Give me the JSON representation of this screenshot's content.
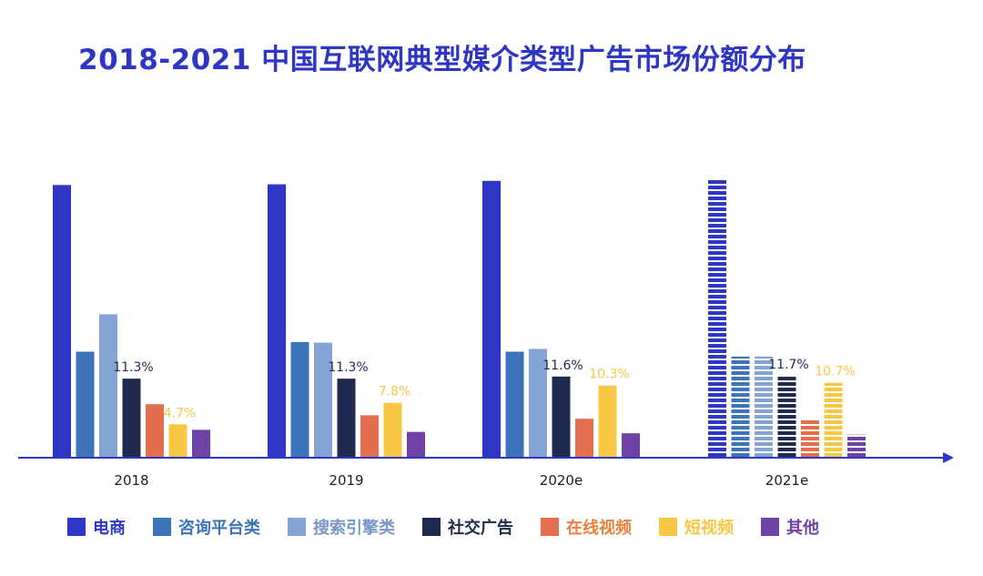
{
  "title": "2018-2021 中国互联网典型媒介类型广告市场份额分布",
  "chart_data": {
    "type": "bar",
    "categories": [
      "2018",
      "2019",
      "2020e",
      "2021e"
    ],
    "ylim": [
      0,
      40
    ],
    "grid": false,
    "legend_position": "bottom",
    "forecast_style": "striped",
    "series": [
      {
        "name": "电商",
        "color": "#2f36c4",
        "label_color": "#2f36c4",
        "values": [
          39.3,
          39.4,
          39.9,
          40.1
        ],
        "labels": [
          "",
          "",
          "",
          ""
        ]
      },
      {
        "name": "咨询平台类",
        "color": "#3d73b8",
        "label_color": "#3d73b8",
        "values": [
          15.2,
          16.6,
          15.2,
          14.5
        ],
        "labels": [
          "",
          "",
          "",
          ""
        ]
      },
      {
        "name": "搜索引擎类",
        "color": "#84a4d6",
        "label_color": "#7896c8",
        "values": [
          20.6,
          16.5,
          15.6,
          14.5
        ],
        "labels": [
          "",
          "",
          "",
          ""
        ]
      },
      {
        "name": "社交广告",
        "color": "#202a4f",
        "label_color": "#202a4f",
        "values": [
          11.3,
          11.3,
          11.6,
          11.7
        ],
        "labels": [
          "11.3%",
          "11.3%",
          "11.6%",
          "11.7%"
        ]
      },
      {
        "name": "在线视频",
        "color": "#e36d4f",
        "label_color": "#e8813e",
        "values": [
          7.6,
          6.0,
          5.5,
          5.5
        ],
        "labels": [
          "",
          "",
          "",
          ""
        ]
      },
      {
        "name": "短视频",
        "color": "#f8c744",
        "label_color": "#f8c744",
        "values": [
          4.7,
          7.8,
          10.3,
          10.7
        ],
        "labels": [
          "4.7%",
          "7.8%",
          "10.3%",
          "10.7%"
        ]
      },
      {
        "name": "其他",
        "color": "#7042a6",
        "label_color": "#7042a6",
        "values": [
          3.9,
          3.6,
          3.4,
          3.2
        ],
        "labels": [
          "",
          "",
          "",
          ""
        ]
      }
    ]
  }
}
